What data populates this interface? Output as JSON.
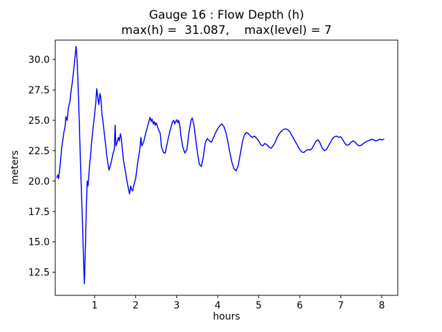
{
  "chart_data": {
    "type": "line",
    "title": "Gauge 16 : Flow Depth (h)",
    "subtitle": "max(h) =  31.087,    max(level) = 7",
    "xlabel": "hours",
    "ylabel": "meters",
    "max_h": 31.087,
    "max_level": 7,
    "line_color": "#0000ff",
    "xlim": [
      0.04,
      8.39
    ],
    "ylim": [
      10.6,
      31.6
    ],
    "xticks": [
      1,
      2,
      3,
      4,
      5,
      6,
      7,
      8
    ],
    "yticks": [
      12.5,
      15.0,
      17.5,
      20.0,
      22.5,
      25.0,
      27.5,
      30.0
    ],
    "grid": false,
    "legend": "none",
    "x": [
      0.08,
      0.1,
      0.12,
      0.15,
      0.2,
      0.25,
      0.28,
      0.3,
      0.33,
      0.36,
      0.4,
      0.42,
      0.45,
      0.48,
      0.5,
      0.53,
      0.55,
      0.58,
      0.6,
      0.63,
      0.66,
      0.7,
      0.73,
      0.75,
      0.77,
      0.8,
      0.82,
      0.84,
      0.86,
      0.88,
      0.9,
      0.92,
      0.95,
      1.0,
      1.03,
      1.05,
      1.08,
      1.1,
      1.13,
      1.15,
      1.18,
      1.2,
      1.25,
      1.3,
      1.35,
      1.4,
      1.45,
      1.48,
      1.5,
      1.52,
      1.55,
      1.58,
      1.6,
      1.63,
      1.65,
      1.68,
      1.7,
      1.75,
      1.8,
      1.83,
      1.85,
      1.88,
      1.9,
      1.93,
      1.95,
      2.0,
      2.05,
      2.1,
      2.13,
      2.15,
      2.18,
      2.2,
      2.25,
      2.3,
      2.35,
      2.38,
      2.4,
      2.43,
      2.45,
      2.48,
      2.5,
      2.55,
      2.6,
      2.63,
      2.68,
      2.72,
      2.75,
      2.8,
      2.85,
      2.9,
      2.93,
      2.95,
      3.0,
      3.03,
      3.05,
      3.08,
      3.1,
      3.15,
      3.2,
      3.25,
      3.3,
      3.35,
      3.38,
      3.42,
      3.45,
      3.5,
      3.55,
      3.6,
      3.65,
      3.7,
      3.75,
      3.8,
      3.85,
      3.9,
      3.95,
      4.0,
      4.05,
      4.1,
      4.15,
      4.2,
      4.25,
      4.3,
      4.35,
      4.4,
      4.45,
      4.5,
      4.55,
      4.6,
      4.65,
      4.7,
      4.75,
      4.8,
      4.85,
      4.9,
      4.95,
      5.0,
      5.05,
      5.1,
      5.15,
      5.2,
      5.25,
      5.3,
      5.35,
      5.4,
      5.45,
      5.5,
      5.55,
      5.6,
      5.65,
      5.7,
      5.75,
      5.8,
      5.85,
      5.9,
      5.95,
      6.0,
      6.05,
      6.1,
      6.15,
      6.2,
      6.25,
      6.3,
      6.35,
      6.4,
      6.45,
      6.5,
      6.55,
      6.6,
      6.65,
      6.7,
      6.75,
      6.8,
      6.85,
      6.9,
      6.95,
      7.0,
      7.05,
      7.1,
      7.15,
      7.2,
      7.25,
      7.3,
      7.35,
      7.4,
      7.45,
      7.5,
      7.55,
      7.6,
      7.65,
      7.7,
      7.75,
      7.8,
      7.85,
      7.9,
      7.95,
      8.0,
      8.05
    ],
    "y": [
      20.3,
      20.5,
      20.2,
      21.0,
      22.8,
      24.0,
      24.5,
      25.3,
      25.0,
      26.0,
      26.6,
      27.3,
      28.0,
      28.8,
      29.5,
      30.5,
      31.087,
      29.5,
      27.5,
      24.5,
      21.0,
      17.0,
      13.5,
      11.55,
      14.0,
      18.0,
      20.0,
      19.6,
      20.5,
      21.5,
      22.0,
      23.0,
      24.0,
      25.5,
      26.5,
      27.6,
      26.8,
      26.3,
      27.2,
      26.9,
      25.5,
      25.0,
      23.5,
      22.0,
      20.9,
      21.5,
      22.3,
      22.6,
      24.6,
      22.9,
      23.2,
      23.6,
      23.3,
      23.9,
      23.5,
      22.5,
      21.8,
      20.8,
      19.8,
      19.3,
      18.95,
      19.6,
      19.3,
      19.2,
      19.6,
      20.2,
      21.5,
      22.6,
      23.6,
      22.9,
      23.1,
      23.3,
      24.0,
      24.6,
      25.25,
      24.9,
      25.1,
      24.7,
      24.9,
      24.6,
      24.8,
      24.3,
      23.9,
      22.8,
      22.35,
      22.3,
      22.8,
      23.6,
      24.3,
      24.9,
      25.0,
      24.7,
      25.05,
      24.8,
      25.0,
      24.5,
      23.8,
      22.8,
      22.3,
      22.6,
      24.0,
      25.0,
      25.2,
      24.6,
      23.8,
      22.5,
      21.4,
      21.2,
      22.0,
      23.2,
      23.5,
      23.3,
      23.2,
      23.6,
      24.0,
      24.3,
      24.55,
      24.7,
      24.5,
      24.0,
      23.2,
      22.3,
      21.5,
      21.0,
      20.85,
      21.3,
      22.2,
      23.2,
      23.8,
      24.0,
      23.9,
      23.7,
      23.6,
      23.7,
      23.5,
      23.3,
      23.0,
      22.9,
      23.1,
      23.0,
      22.8,
      22.7,
      22.9,
      23.2,
      23.6,
      23.9,
      24.1,
      24.25,
      24.3,
      24.25,
      24.1,
      23.8,
      23.5,
      23.2,
      22.9,
      22.6,
      22.4,
      22.35,
      22.5,
      22.6,
      22.55,
      22.7,
      23.0,
      23.3,
      23.4,
      23.1,
      22.7,
      22.5,
      22.6,
      22.9,
      23.2,
      23.5,
      23.65,
      23.7,
      23.6,
      23.65,
      23.4,
      23.1,
      22.95,
      23.0,
      23.2,
      23.3,
      23.2,
      23.0,
      22.9,
      22.95,
      23.1,
      23.2,
      23.3,
      23.35,
      23.45,
      23.4,
      23.3,
      23.35,
      23.45,
      23.4,
      23.45
    ]
  }
}
